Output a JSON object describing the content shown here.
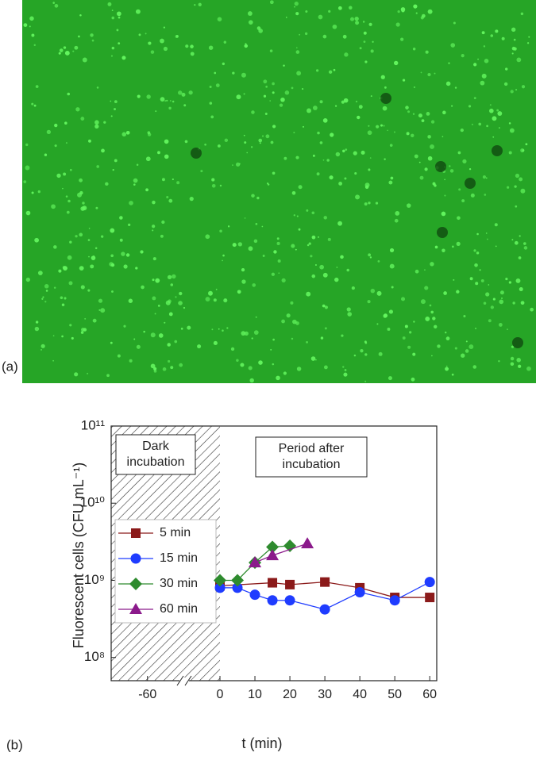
{
  "chart_data": {
    "type": "line",
    "panel_labels": [
      "(a)",
      "(b)"
    ],
    "ylabel": "Fluorescent cells (CFU mL⁻¹)",
    "xlabel": "t (min)",
    "ylog": true,
    "ylim": [
      50000000,
      100000000000
    ],
    "yticks": [
      {
        "value": 100000000,
        "label": "10⁸"
      },
      {
        "value": 1000000000,
        "label": "10⁹"
      },
      {
        "value": 10000000000,
        "label": "10¹⁰"
      },
      {
        "value": 100000000000,
        "label": "10¹¹"
      }
    ],
    "xlim": [
      -75,
      62
    ],
    "xticks": [
      -60,
      0,
      10,
      20,
      30,
      40,
      50,
      60
    ],
    "annotations": [
      "Dark incubation",
      "Period after incubation"
    ],
    "legend": "upper-left",
    "series": [
      {
        "name": "5 min",
        "color": "#8b1a1a",
        "marker": "square",
        "x": [
          0,
          15,
          20,
          30,
          40,
          50,
          60
        ],
        "values": [
          850000000,
          930000000,
          880000000,
          950000000,
          800000000,
          600000000,
          600000000
        ]
      },
      {
        "name": "15 min",
        "color": "#1f3cff",
        "marker": "circle",
        "x": [
          0,
          5,
          10,
          15,
          20,
          30,
          40,
          50,
          60
        ],
        "values": [
          800000000,
          800000000,
          650000000,
          550000000,
          550000000,
          420000000,
          700000000,
          550000000,
          950000000
        ]
      },
      {
        "name": "30 min",
        "color": "#2e8b2e",
        "marker": "diamond",
        "x": [
          0,
          5,
          10,
          15,
          20
        ],
        "values": [
          1000000000,
          1000000000,
          1700000000,
          2700000000,
          2800000000
        ]
      },
      {
        "name": "60 min",
        "color": "#8b1a8b",
        "marker": "triangle",
        "x": [
          10,
          15,
          25
        ],
        "values": [
          1700000000,
          2100000000,
          3000000000
        ]
      }
    ]
  }
}
